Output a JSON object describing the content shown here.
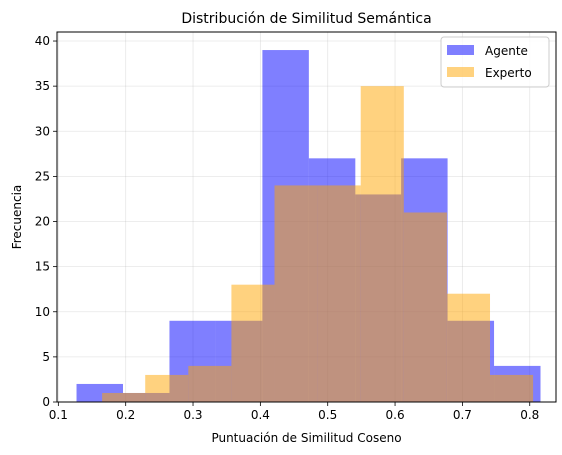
{
  "chart_data": {
    "type": "histogram",
    "title": "Distribución de Similitud Semántica",
    "xlabel": "Puntuación de Similitud Coseno",
    "ylabel": "Frecuencia",
    "xlim": [
      0.098,
      0.839
    ],
    "ylim": [
      0,
      41
    ],
    "xticks": [
      0.1,
      0.2,
      0.3,
      0.4,
      0.5,
      0.6,
      0.7,
      0.8
    ],
    "xtick_labels": [
      "0.1",
      "0.2",
      "0.3",
      "0.4",
      "0.5",
      "0.6",
      "0.7",
      "0.8"
    ],
    "yticks": [
      0,
      5,
      10,
      15,
      20,
      25,
      30,
      35,
      40
    ],
    "ytick_labels": [
      "0",
      "5",
      "10",
      "15",
      "20",
      "25",
      "30",
      "35",
      "40"
    ],
    "grid": true,
    "legend_position": "top-right",
    "series": [
      {
        "name": "Agente",
        "color": "#0000ff",
        "alpha": 0.5,
        "bin_edges": [
          0.127,
          0.196,
          0.265,
          0.334,
          0.403,
          0.472,
          0.541,
          0.609,
          0.678,
          0.747,
          0.816
        ],
        "counts": [
          2,
          1,
          9,
          9,
          39,
          27,
          23,
          27,
          9,
          4
        ]
      },
      {
        "name": "Experto",
        "color": "#ffa500",
        "alpha": 0.5,
        "bin_edges": [
          0.165,
          0.229,
          0.293,
          0.357,
          0.421,
          0.485,
          0.549,
          0.613,
          0.677,
          0.741,
          0.805
        ],
        "counts": [
          1,
          3,
          4,
          13,
          24,
          24,
          35,
          21,
          12,
          3
        ]
      }
    ]
  }
}
